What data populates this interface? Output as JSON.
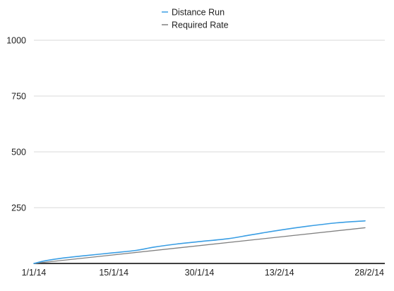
{
  "chart_data": {
    "type": "line",
    "title": "",
    "xlabel": "",
    "ylabel": "",
    "x_type": "date",
    "x_range": [
      "2014-01-01",
      "2014-02-28"
    ],
    "x_ticks": [
      {
        "date": "2014-01-01",
        "label": "1/1/14"
      },
      {
        "date": "2014-01-15",
        "label": "15/1/14"
      },
      {
        "date": "2014-01-30",
        "label": "30/1/14"
      },
      {
        "date": "2014-02-13",
        "label": "13/2/14"
      },
      {
        "date": "2014-02-28",
        "label": "28/2/14"
      }
    ],
    "ylim": [
      0,
      1000
    ],
    "y_ticks": [
      250,
      500,
      750,
      1000
    ],
    "y_tick_labels": [
      "250",
      "500",
      "750",
      "1000"
    ],
    "grid": "horizontal",
    "legend_position": "top",
    "series": [
      {
        "name": "Distance Run",
        "color": "#3a9ee4",
        "points": [
          {
            "x": "2014-01-01",
            "y": 0
          },
          {
            "x": "2014-01-03",
            "y": 12
          },
          {
            "x": "2014-01-06",
            "y": 24
          },
          {
            "x": "2014-01-10",
            "y": 35
          },
          {
            "x": "2014-01-15",
            "y": 48
          },
          {
            "x": "2014-01-19",
            "y": 59
          },
          {
            "x": "2014-01-22",
            "y": 73
          },
          {
            "x": "2014-01-26",
            "y": 87
          },
          {
            "x": "2014-01-30",
            "y": 98
          },
          {
            "x": "2014-02-04",
            "y": 111
          },
          {
            "x": "2014-02-08",
            "y": 128
          },
          {
            "x": "2014-02-13",
            "y": 149
          },
          {
            "x": "2014-02-18",
            "y": 167
          },
          {
            "x": "2014-02-23",
            "y": 182
          },
          {
            "x": "2014-02-28",
            "y": 191
          }
        ]
      },
      {
        "name": "Required Rate",
        "color": "#808080",
        "points": [
          {
            "x": "2014-01-01",
            "y": 0
          },
          {
            "x": "2014-02-28",
            "y": 160
          }
        ]
      }
    ]
  }
}
